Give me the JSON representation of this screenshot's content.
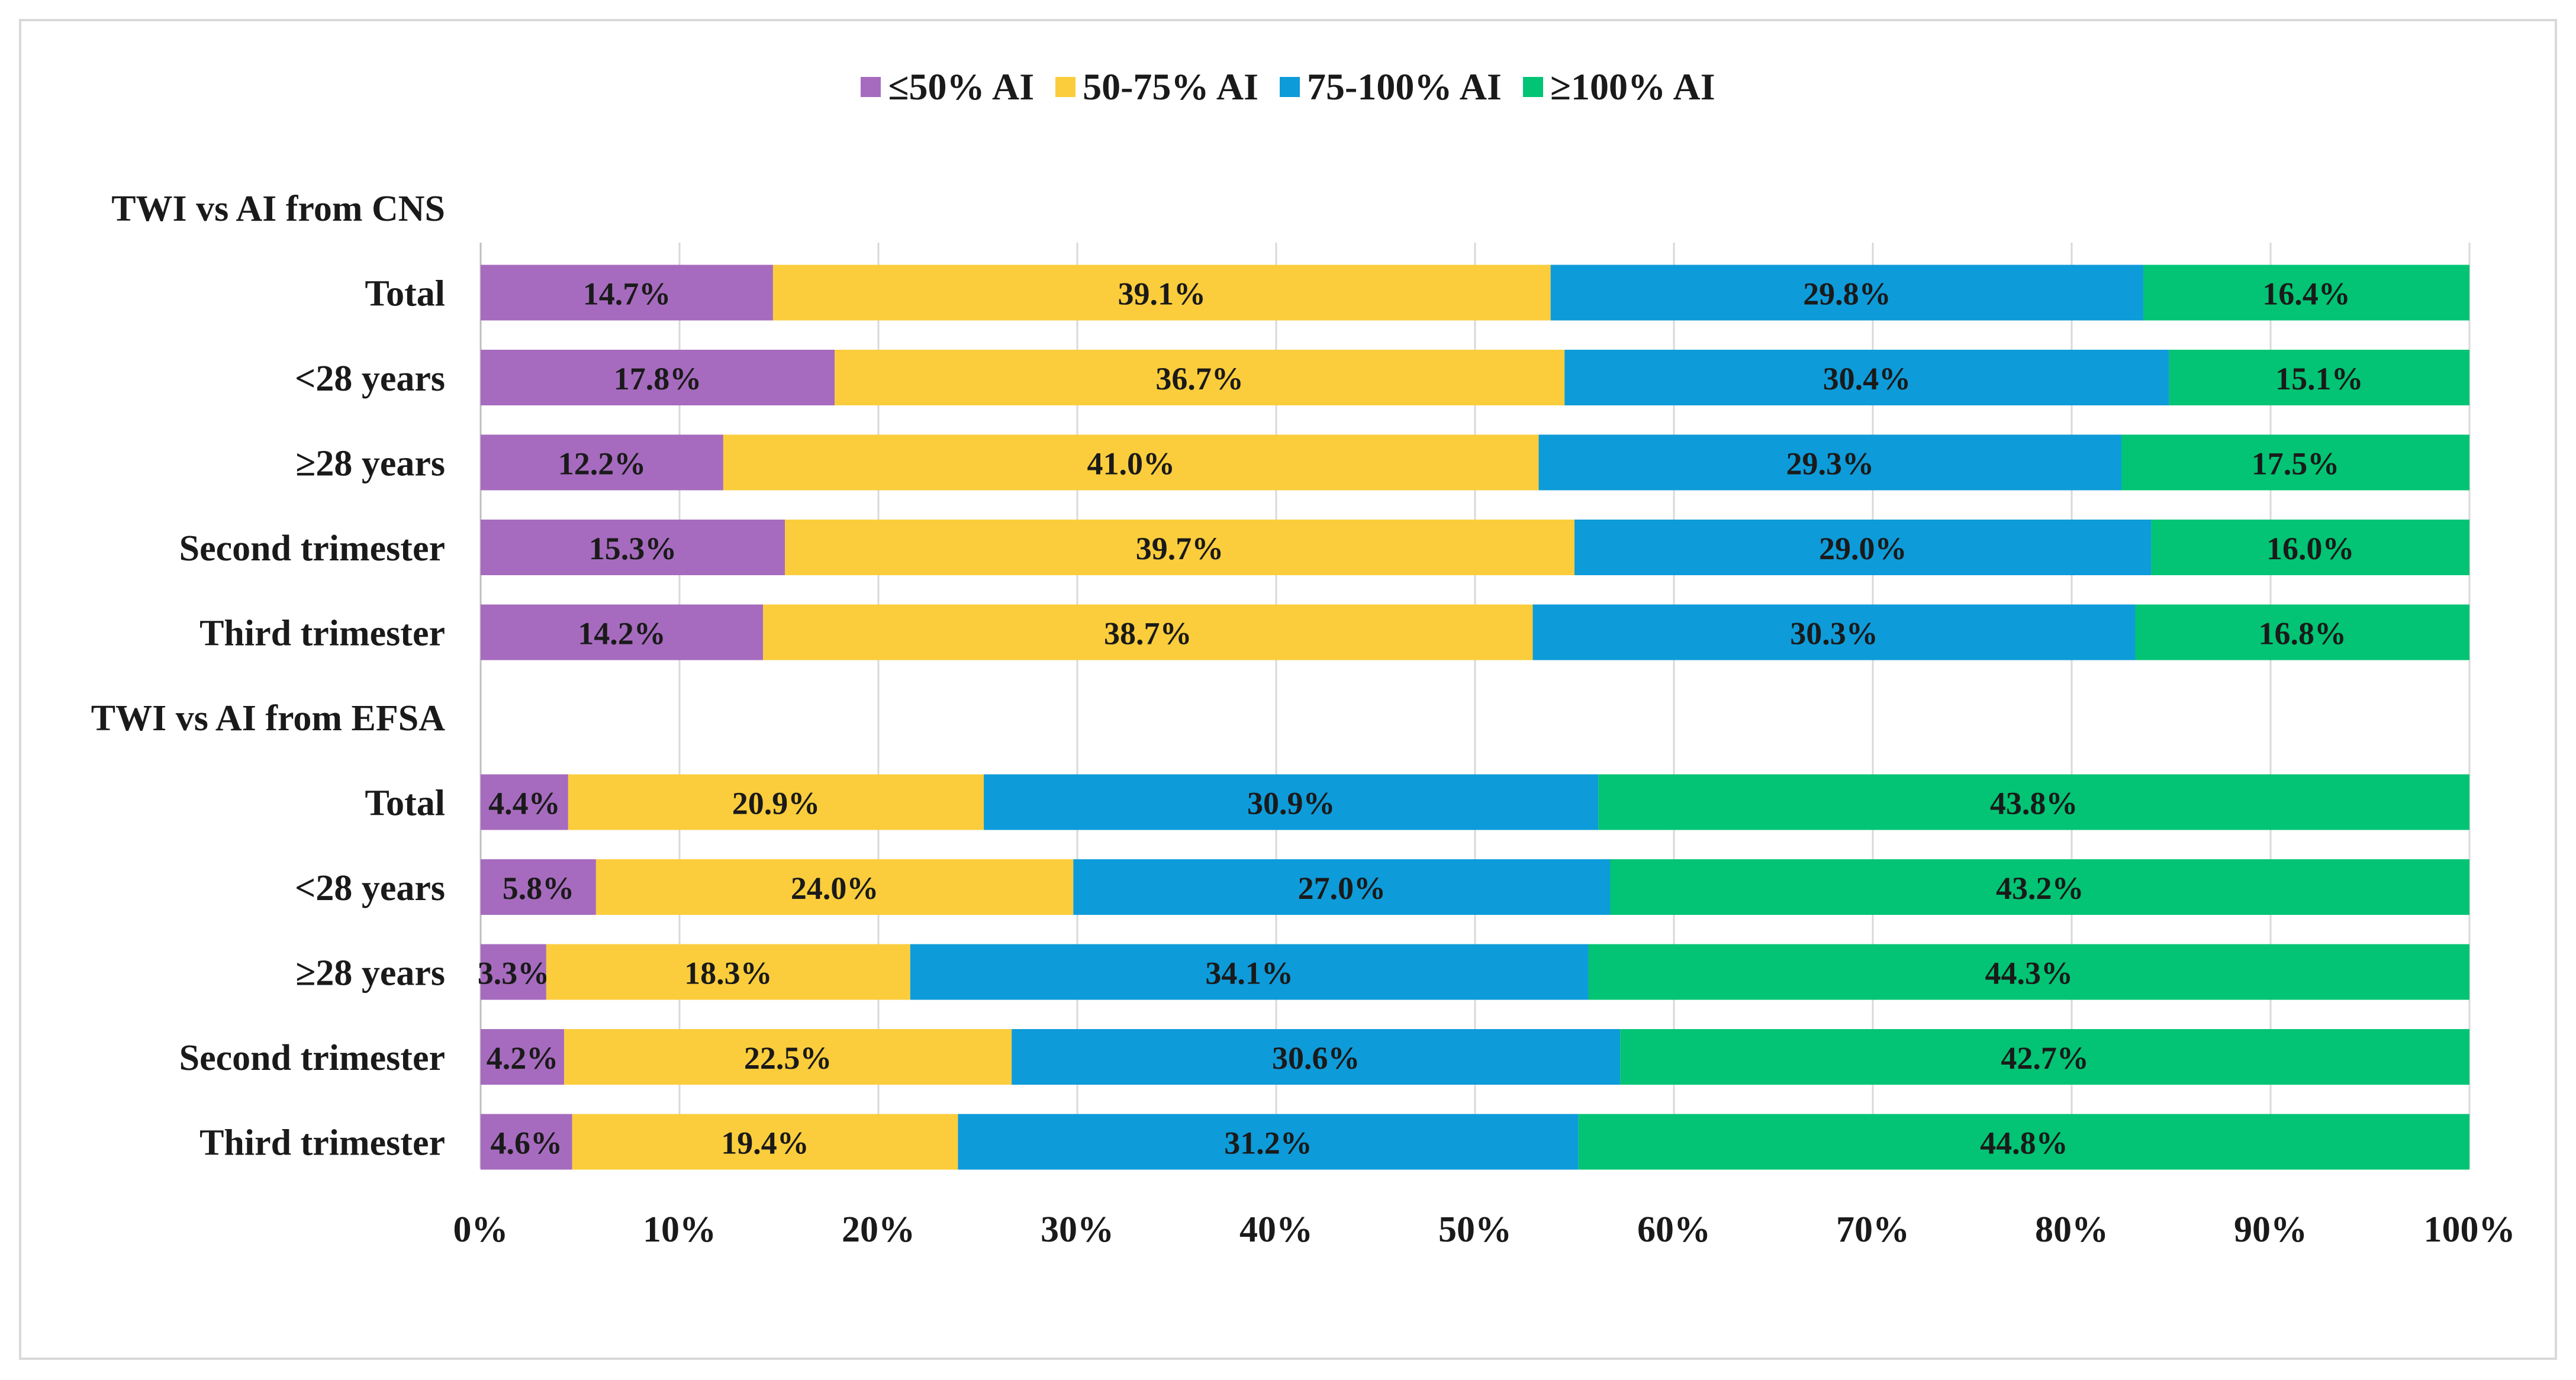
{
  "chart_data": {
    "type": "bar",
    "orientation": "horizontal",
    "stacked": true,
    "legend_position": "top",
    "grid": true,
    "xlim": [
      0,
      100
    ],
    "x_ticks": [
      "0%",
      "10%",
      "20%",
      "30%",
      "40%",
      "50%",
      "60%",
      "70%",
      "80%",
      "90%",
      "100%"
    ],
    "series": [
      {
        "name": "≤50% AI",
        "color": "#a66bbe"
      },
      {
        "name": "50-75% AI",
        "color": "#fbcd3c"
      },
      {
        "name": "75-100% AI",
        "color": "#0e9bd9"
      },
      {
        "name": "≥100% AI",
        "color": "#02c474"
      }
    ],
    "rows": [
      {
        "label": "TWI vs AI from CNS",
        "header": true
      },
      {
        "label": "Total",
        "values": [
          14.7,
          39.1,
          29.8,
          16.4
        ],
        "labels": [
          "14.7%",
          "39.1%",
          "29.8%",
          "16.4%"
        ]
      },
      {
        "label": "<28 years",
        "values": [
          17.8,
          36.7,
          30.4,
          15.1
        ],
        "labels": [
          "17.8%",
          "36.7%",
          "30.4%",
          "15.1%"
        ]
      },
      {
        "label": "≥28 years",
        "values": [
          12.2,
          41.0,
          29.3,
          17.5
        ],
        "labels": [
          "12.2%",
          "41.0%",
          "29.3%",
          "17.5%"
        ]
      },
      {
        "label": "Second trimester",
        "values": [
          15.3,
          39.7,
          29.0,
          16.0
        ],
        "labels": [
          "15.3%",
          "39.7%",
          "29.0%",
          "16.0%"
        ]
      },
      {
        "label": "Third trimester",
        "values": [
          14.2,
          38.7,
          30.3,
          16.8
        ],
        "labels": [
          "14.2%",
          "38.7%",
          "30.3%",
          "16.8%"
        ]
      },
      {
        "label": "TWI vs AI from EFSA",
        "header": true
      },
      {
        "label": "Total",
        "values": [
          4.4,
          20.9,
          30.9,
          43.8
        ],
        "labels": [
          "4.4%",
          "20.9%",
          "30.9%",
          "43.8%"
        ]
      },
      {
        "label": "<28 years",
        "values": [
          5.8,
          24.0,
          27.0,
          43.2
        ],
        "labels": [
          "5.8%",
          "24.0%",
          "27.0%",
          "43.2%"
        ]
      },
      {
        "label": "≥28 years",
        "values": [
          3.3,
          18.3,
          34.1,
          44.3
        ],
        "labels": [
          "3.3%",
          "18.3%",
          "34.1%",
          "44.3%"
        ]
      },
      {
        "label": "Second trimester",
        "values": [
          4.2,
          22.5,
          30.6,
          42.7
        ],
        "labels": [
          "4.2%",
          "22.5%",
          "30.6%",
          "42.7%"
        ]
      },
      {
        "label": "Third trimester",
        "values": [
          4.6,
          19.4,
          31.2,
          44.8
        ],
        "labels": [
          "4.6%",
          "19.4%",
          "31.2%",
          "44.8%"
        ]
      }
    ]
  }
}
